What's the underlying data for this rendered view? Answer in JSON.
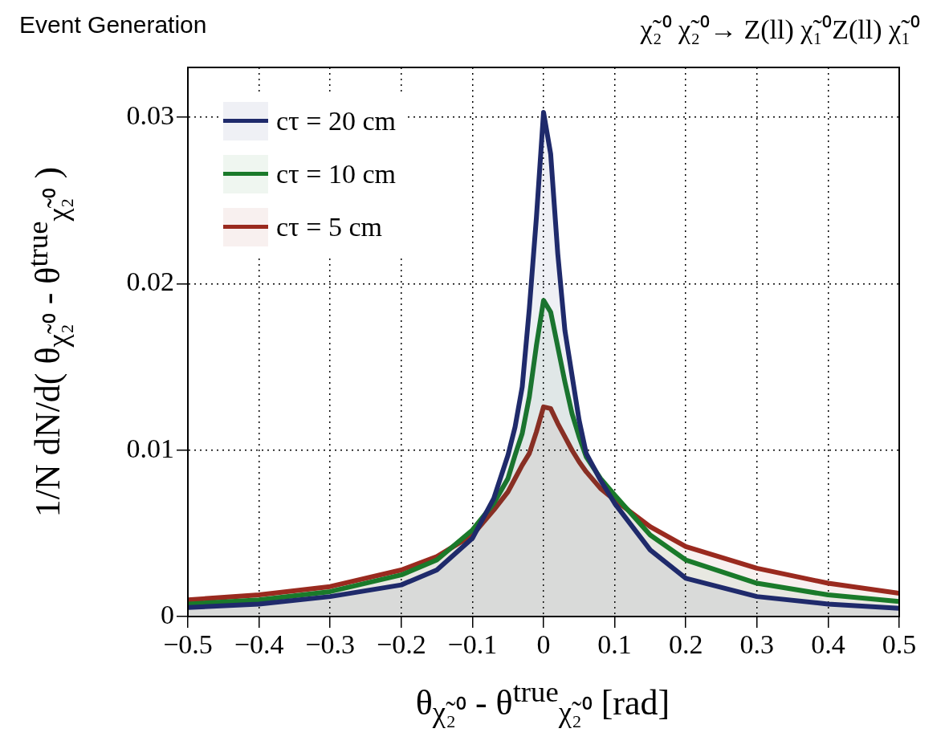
{
  "chart_data": {
    "type": "area",
    "title": "Event Generation",
    "subtitle": "χ̃₂⁰ χ̃₂⁰→ Z(ll) χ̃₁⁰Z(ll) χ̃₁⁰",
    "xlabel": "θ$_{χ̃₂⁰}$ - θ$^{true}$$_{χ̃₂⁰}$ [rad]",
    "ylabel": "1/N dN/d( θ$_{χ̃₂⁰}$ - θ$^{true}$$_{χ̃₂⁰}$ )",
    "x": [
      -0.5,
      -0.4,
      -0.3,
      -0.2,
      -0.15,
      -0.1,
      -0.07,
      -0.05,
      -0.04,
      -0.03,
      -0.02,
      -0.01,
      0,
      0.01,
      0.02,
      0.03,
      0.04,
      0.05,
      0.06,
      0.08,
      0.1,
      0.15,
      0.2,
      0.3,
      0.4,
      0.5
    ],
    "series": [
      {
        "name": "cτ = 20 cm",
        "color": "#1f2a6b",
        "values": [
          0.00054,
          0.00075,
          0.0012,
          0.0019,
          0.0028,
          0.0047,
          0.0071,
          0.0097,
          0.0114,
          0.0138,
          0.0185,
          0.024,
          0.0303,
          0.0278,
          0.0218,
          0.0172,
          0.0145,
          0.0118,
          0.0098,
          0.0082,
          0.0068,
          0.004,
          0.0023,
          0.0012,
          0.00075,
          0.0005
        ]
      },
      {
        "name": "cτ = 10 cm",
        "color": "#1a7a2a",
        "values": [
          0.00075,
          0.001,
          0.0015,
          0.0025,
          0.0034,
          0.0052,
          0.0068,
          0.0083,
          0.0097,
          0.011,
          0.0132,
          0.0163,
          0.019,
          0.0183,
          0.0162,
          0.0141,
          0.0122,
          0.0108,
          0.0096,
          0.0083,
          0.0073,
          0.0049,
          0.0034,
          0.002,
          0.0013,
          0.0009
        ]
      },
      {
        "name": "cτ = 5 cm",
        "color": "#9a2a1f",
        "values": [
          0.001,
          0.0013,
          0.0018,
          0.0028,
          0.0036,
          0.0049,
          0.0064,
          0.0075,
          0.0083,
          0.0091,
          0.0098,
          0.0111,
          0.0126,
          0.0125,
          0.0116,
          0.0108,
          0.01,
          0.0093,
          0.0087,
          0.0077,
          0.007,
          0.0054,
          0.0042,
          0.0029,
          0.002,
          0.0014
        ]
      }
    ],
    "xlim": [
      -0.5,
      0.5
    ],
    "xticks": [
      {
        "value": -0.5,
        "label": "−0.5"
      },
      {
        "value": -0.4,
        "label": "−0.4"
      },
      {
        "value": -0.3,
        "label": "−0.3"
      },
      {
        "value": -0.2,
        "label": "−0.2"
      },
      {
        "value": -0.1,
        "label": "−0.1"
      },
      0,
      0.1,
      0.2,
      0.3,
      0.4,
      0.5
    ],
    "ylim": [
      0,
      0.033
    ],
    "yticks": [
      0,
      0.01,
      0.02,
      0.03
    ],
    "grid": true,
    "legend": "top left",
    "line_style": "solid"
  }
}
